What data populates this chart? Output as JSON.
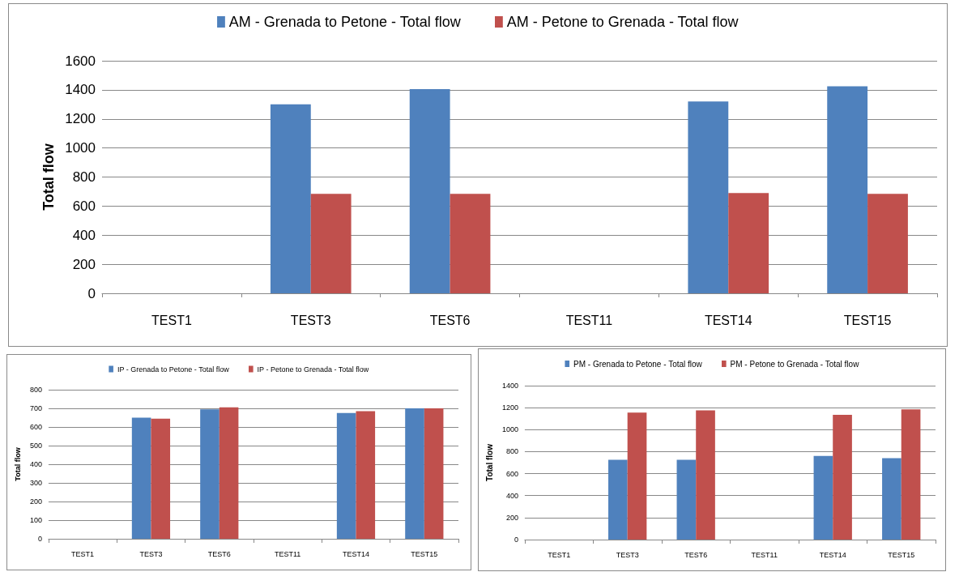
{
  "chart_data": [
    {
      "type": "bar",
      "ylabel": "Total flow",
      "categories": [
        "TEST1",
        "TEST3",
        "TEST6",
        "TEST11",
        "TEST14",
        "TEST15"
      ],
      "series": [
        {
          "name": "AM - Grenada to Petone - Total flow",
          "color": "#4f81bd",
          "values": [
            null,
            1300,
            1405,
            null,
            1320,
            1425
          ]
        },
        {
          "name": "AM - Petone to Grenada - Total flow",
          "color": "#c0504d",
          "values": [
            null,
            685,
            685,
            null,
            690,
            685
          ]
        }
      ],
      "ylim": [
        0,
        1600
      ],
      "yticks": [
        0,
        200,
        400,
        600,
        800,
        1000,
        1200,
        1400,
        1600
      ],
      "grid": "y",
      "legend": "top"
    },
    {
      "type": "bar",
      "ylabel": "Total flow",
      "categories": [
        "TEST1",
        "TEST3",
        "TEST6",
        "TEST11",
        "TEST14",
        "TEST15"
      ],
      "series": [
        {
          "name": "IP - Grenada to Petone - Total flow",
          "color": "#4f81bd",
          "values": [
            null,
            650,
            695,
            null,
            675,
            700
          ]
        },
        {
          "name": "IP - Petone to Grenada - Total flow",
          "color": "#c0504d",
          "values": [
            null,
            645,
            705,
            null,
            685,
            700
          ]
        }
      ],
      "ylim": [
        0,
        800
      ],
      "yticks": [
        0,
        100,
        200,
        300,
        400,
        500,
        600,
        700,
        800
      ],
      "grid": "y",
      "legend": "top"
    },
    {
      "type": "bar",
      "ylabel": "Total flow",
      "categories": [
        "TEST1",
        "TEST3",
        "TEST6",
        "TEST11",
        "TEST14",
        "TEST15"
      ],
      "series": [
        {
          "name": "PM - Grenada to Petone - Total flow",
          "color": "#4f81bd",
          "values": [
            null,
            725,
            725,
            null,
            760,
            740
          ]
        },
        {
          "name": "PM - Petone to Grenada - Total flow",
          "color": "#c0504d",
          "values": [
            null,
            1155,
            1175,
            null,
            1135,
            1185
          ]
        }
      ],
      "ylim": [
        0,
        1400
      ],
      "yticks": [
        0,
        200,
        400,
        600,
        800,
        1000,
        1200,
        1400
      ],
      "grid": "y",
      "legend": "top"
    }
  ]
}
